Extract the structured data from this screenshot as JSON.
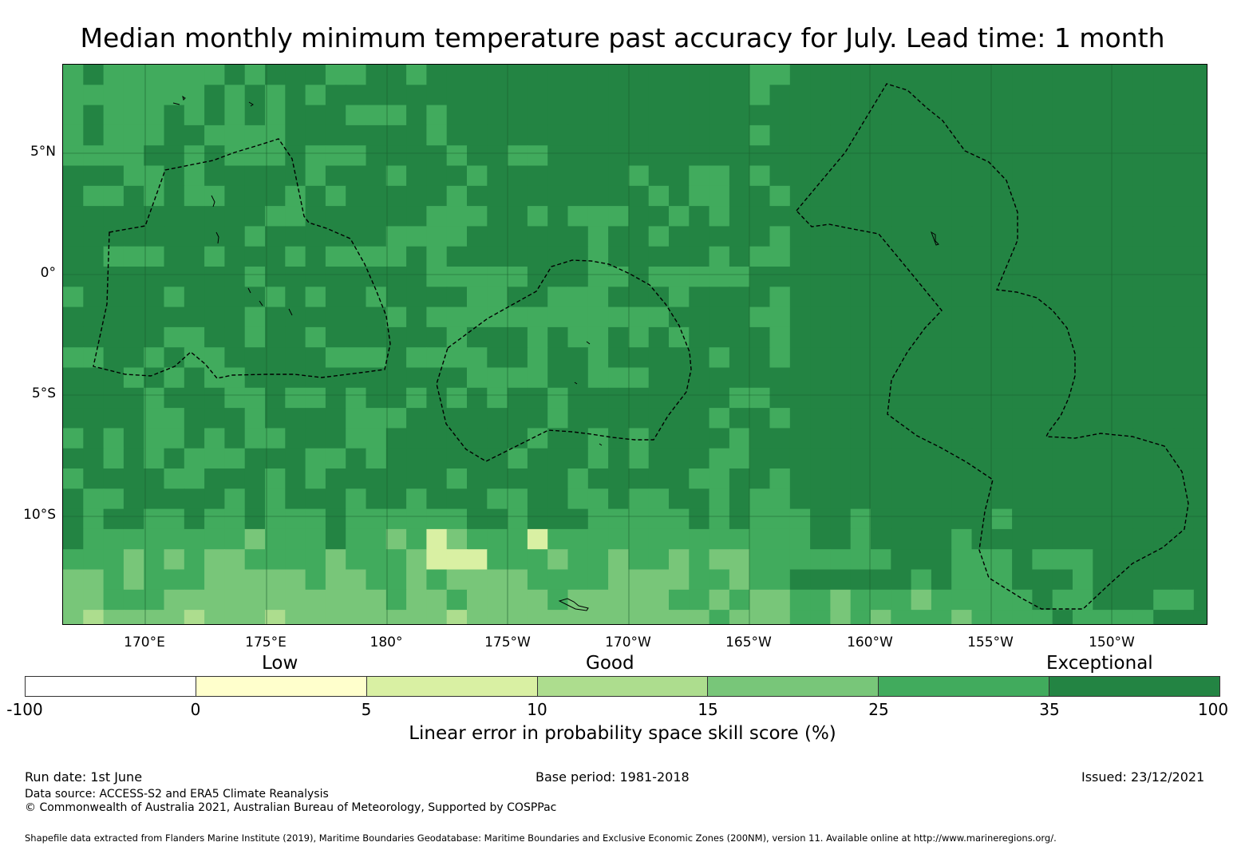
{
  "title": "Median monthly minimum temperature past accuracy for July. Lead time: 1 month",
  "map": {
    "lat_labels": [
      "5°N",
      "0°",
      "5°S",
      "10°S"
    ],
    "lon_labels": [
      "170°E",
      "175°E",
      "180°",
      "175°W",
      "170°W",
      "165°W",
      "160°W",
      "155°W",
      "150°W"
    ],
    "region_extent": {
      "lon_min": 166.6,
      "lon_max": -146.1,
      "lat_min": -14.6,
      "lat_max": 8.6
    },
    "grid": true,
    "boundaries": "dashed EEZ outlines (black)",
    "colors": {
      "very_dark": "#217f40",
      "dark": "#238443",
      "medium": "#41ab5d",
      "light": "#78c679",
      "pale": "#addd8e",
      "very_pale": "#d9f0a3",
      "cream": "#ffffcc"
    }
  },
  "legend": {
    "category_labels": [
      "Low",
      "Good",
      "Exceptional"
    ],
    "bins": [
      {
        "from": -100,
        "to": 0,
        "color": "#ffffff"
      },
      {
        "from": 0,
        "to": 5,
        "color": "#ffffcc"
      },
      {
        "from": 5,
        "to": 10,
        "color": "#d9f0a3"
      },
      {
        "from": 10,
        "to": 15,
        "color": "#addd8e"
      },
      {
        "from": 15,
        "to": 25,
        "color": "#78c679"
      },
      {
        "from": 25,
        "to": 35,
        "color": "#41ab5d"
      },
      {
        "from": 35,
        "to": 100,
        "color": "#238443"
      }
    ],
    "ticks": [
      "-100",
      "0",
      "5",
      "10",
      "15",
      "25",
      "35",
      "100"
    ],
    "label": "Linear error in probability space skill score (%)"
  },
  "footer": {
    "run_date": "Run date: 1st June",
    "base_period": "Base period: 1981-2018",
    "issued": "Issued: 23/12/2021",
    "data_source": "Data source: ACCESS-S2 and ERA5 Climate Reanalysis",
    "copyright": "© Commonwealth of Australia 2021, Australian Bureau of Meteorology, Supported by COSPPac",
    "shapefile": "Shapefile data extracted from Flanders Marine Institute (2019), Maritime Boundaries Geodatabase: Maritime Boundaries and Exclusive Economic Zones (200NM), version 11. Available online at http://www.marineregions.org/."
  }
}
